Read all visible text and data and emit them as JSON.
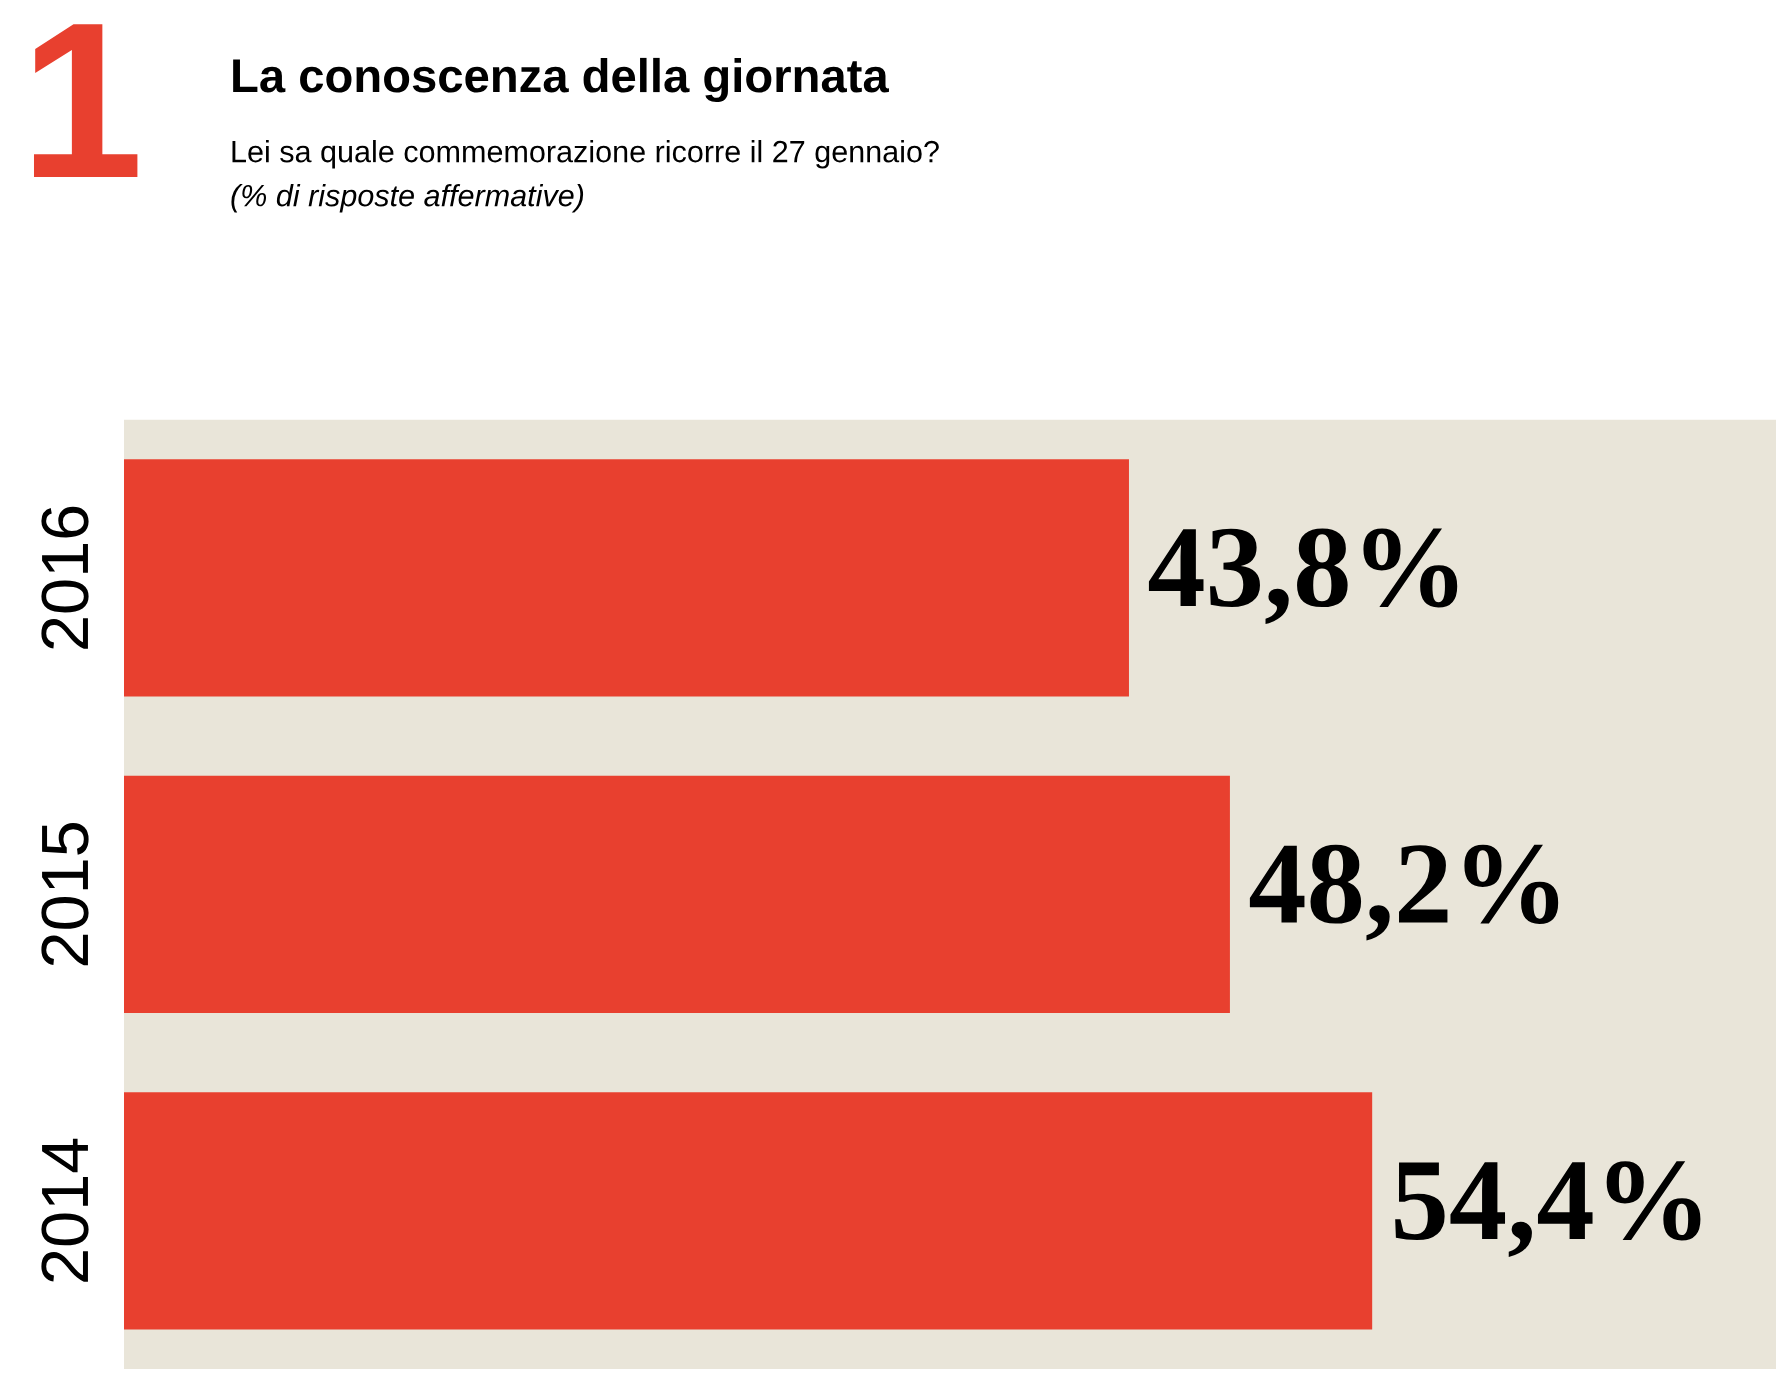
{
  "chart_data": {
    "type": "bar",
    "orientation": "horizontal",
    "title": "La conoscenza della giornata",
    "subtitle": "Lei sa quale commemorazione ricorre il 27 gennaio?\n(% di risposte affermative)",
    "annotations": [
      "1"
    ],
    "categories": [
      "2016",
      "2015",
      "2014"
    ],
    "values": [
      43.8,
      48.2,
      54.4
    ],
    "value_labels": [
      "43,8%",
      "48,2%",
      "54,4%"
    ],
    "color": "#e8402f",
    "xlim": [
      0,
      72
    ],
    "grid": false,
    "legend": false
  }
}
